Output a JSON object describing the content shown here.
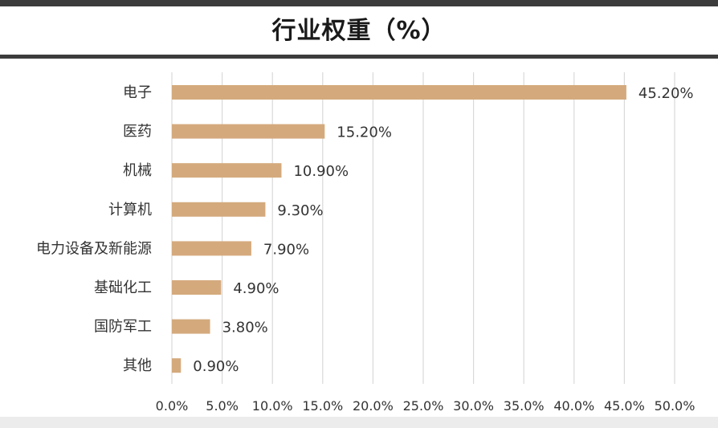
{
  "title": "行业权重（%）",
  "colors": {
    "bar": "#d4aa7d",
    "grid": "#d9d9d9",
    "frame": "#3c3c3c"
  },
  "chart_data": {
    "type": "bar",
    "orientation": "horizontal",
    "title": "行业权重（%）",
    "categories": [
      "电子",
      "医药",
      "机械",
      "计算机",
      "电力设备及新能源",
      "基础化工",
      "国防军工",
      "其他"
    ],
    "values": [
      45.2,
      15.2,
      10.9,
      9.3,
      7.9,
      4.9,
      3.8,
      0.9
    ],
    "value_labels": [
      "45.20%",
      "15.20%",
      "10.90%",
      "9.30%",
      "7.90%",
      "4.90%",
      "3.80%",
      "0.90%"
    ],
    "x_ticks": [
      "0.0%",
      "5.0%",
      "10.0%",
      "15.0%",
      "20.0%",
      "25.0%",
      "30.0%",
      "35.0%",
      "40.0%",
      "45.0%",
      "50.0%"
    ],
    "xlim": [
      0,
      50
    ],
    "grid": true,
    "legend": "none"
  }
}
